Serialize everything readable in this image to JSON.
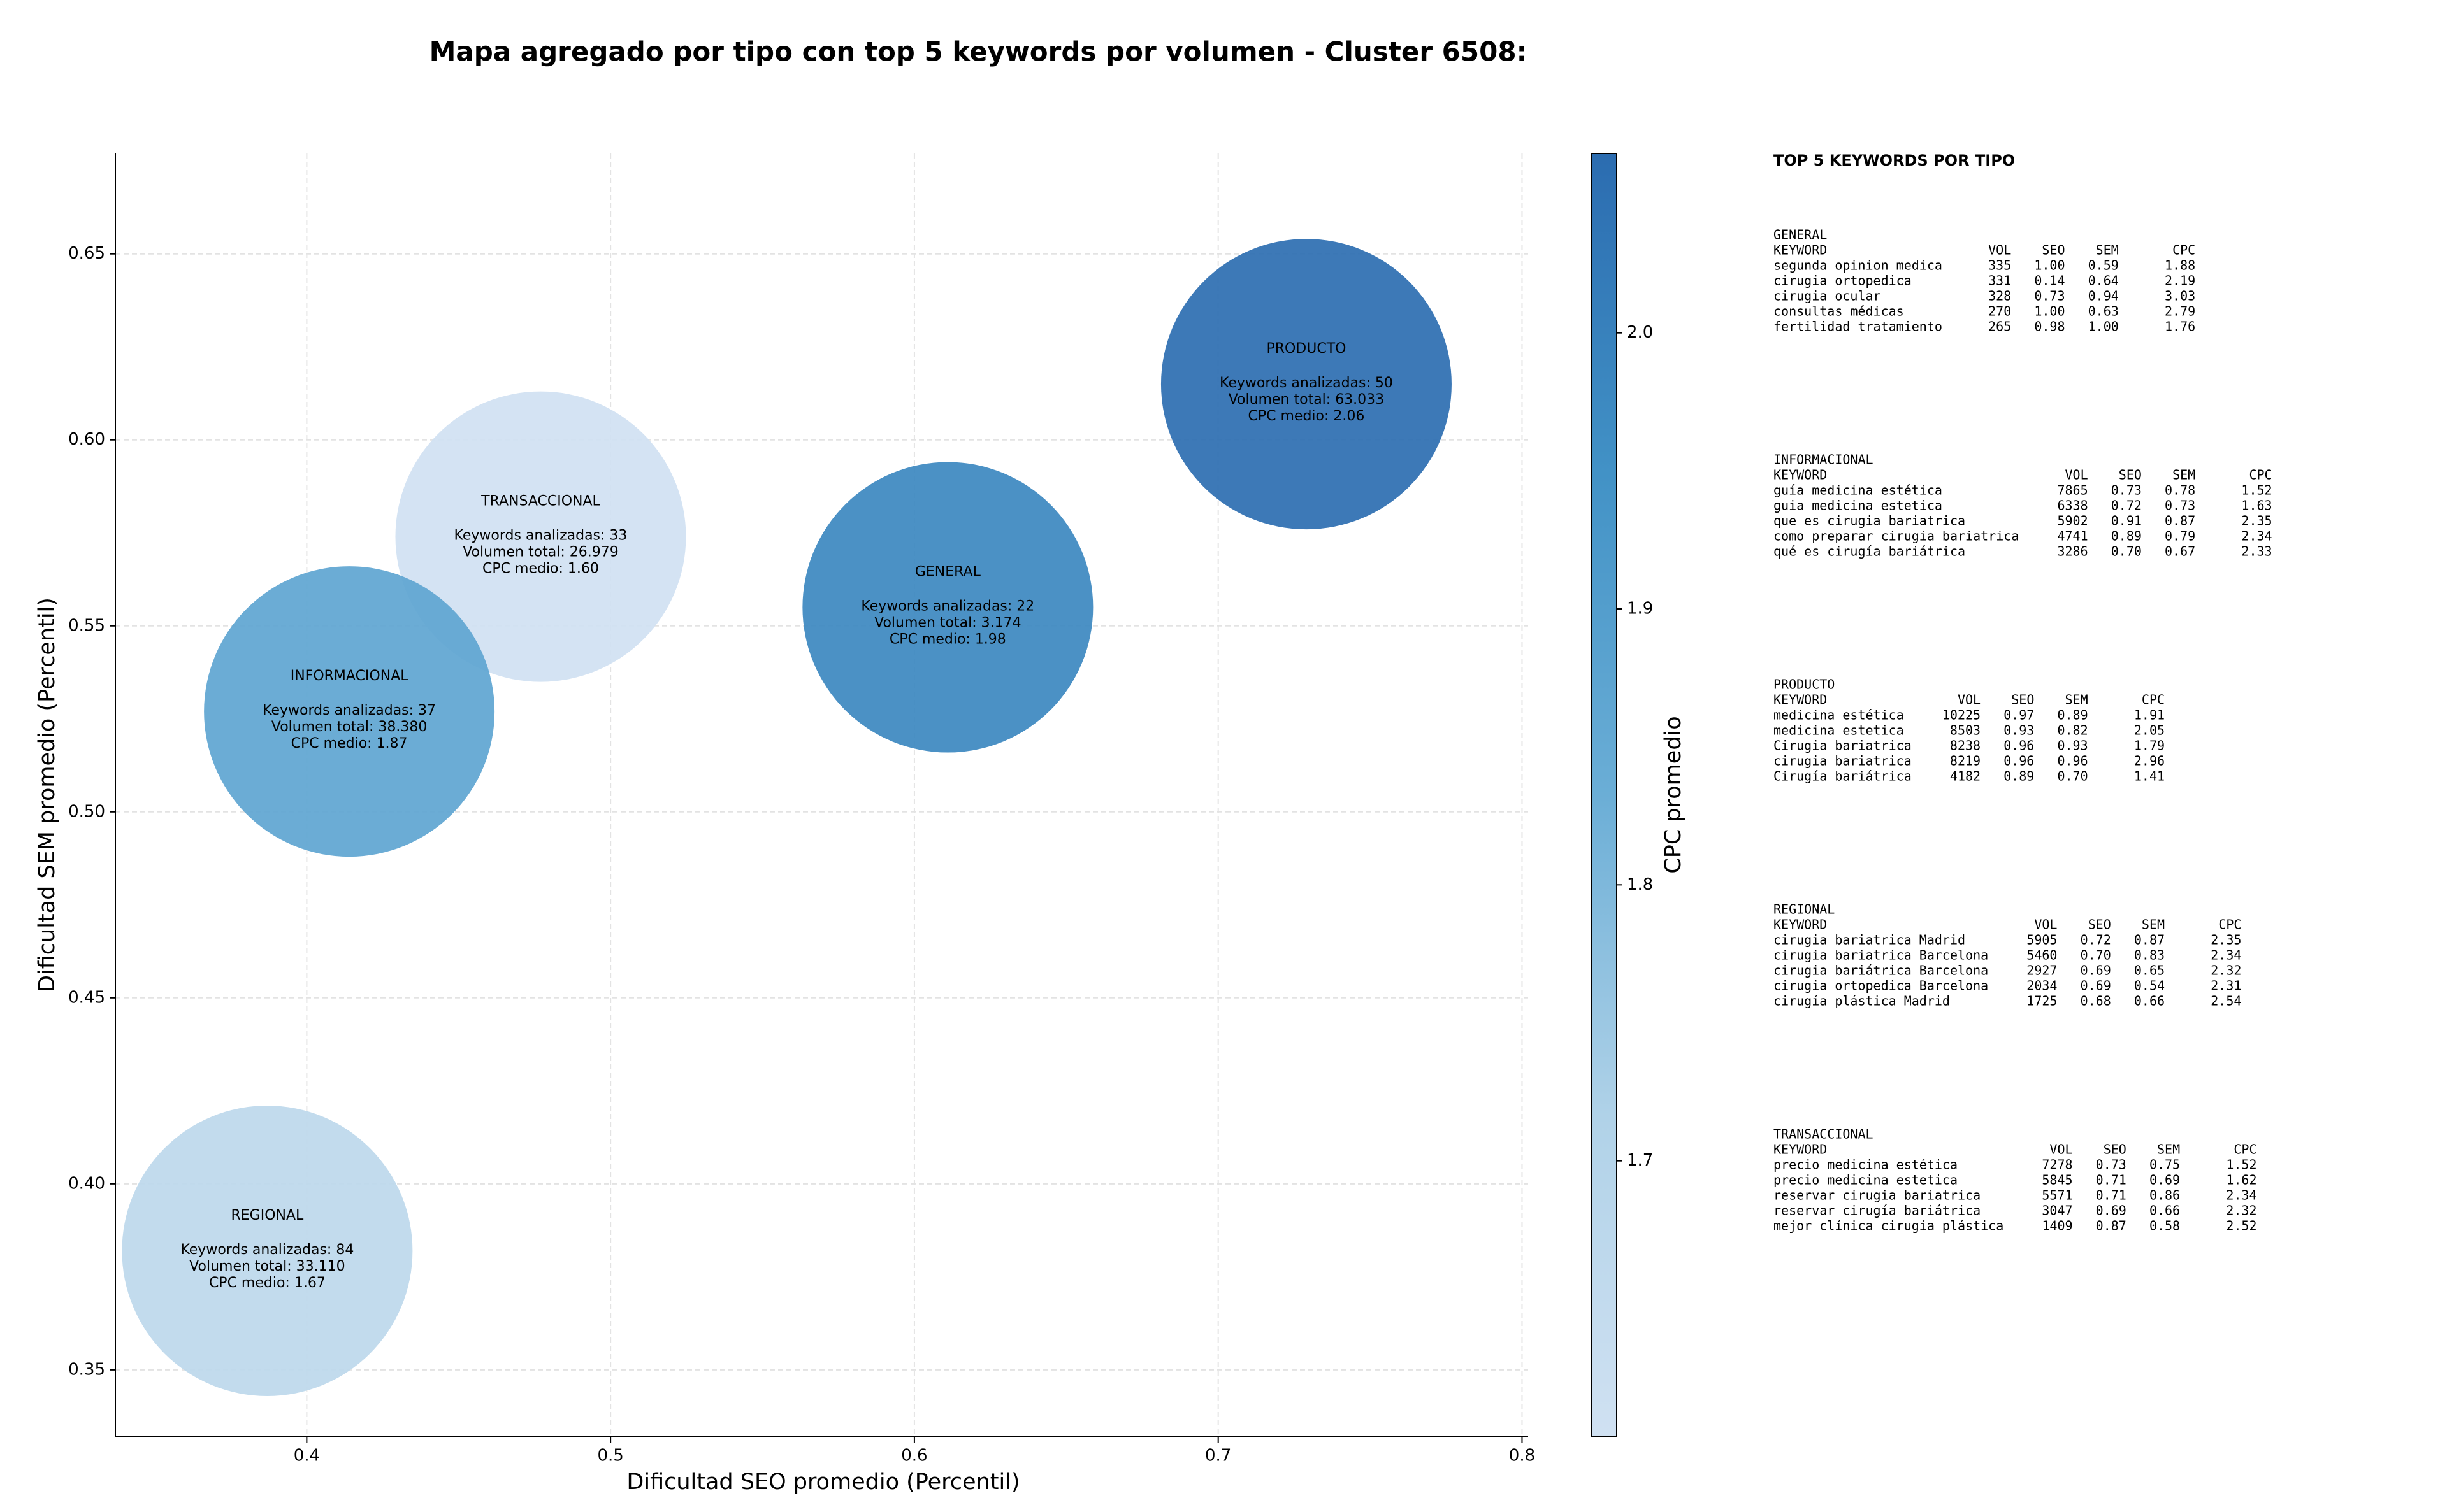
{
  "chart_data": {
    "type": "bubble",
    "title": "Mapa agregado por tipo con top 5 keywords por volumen - Cluster 6508:",
    "x_label": "Dificultad SEO promedio (Percentil)",
    "y_label": "Dificultad SEM promedio (Percentil)",
    "colorbar_label": "CPC promedio",
    "labels": [
      "PRODUCTO",
      "TRANSACCIONAL",
      "INFORMACIONAL",
      "GENERAL",
      "REGIONAL"
    ],
    "x": [
      0.729,
      0.477,
      0.414,
      0.611,
      0.387
    ],
    "y": [
      0.615,
      0.574,
      0.527,
      0.555,
      0.382
    ],
    "color_values": [
      2.06,
      1.6,
      1.87,
      1.98,
      1.67
    ],
    "annotations": [
      [
        "Keywords analizadas: 50",
        "Volumen total: 63.033",
        "CPC medio: 2.06"
      ],
      [
        "Keywords analizadas: 33",
        "Volumen total: 26.979",
        "CPC medio: 1.60"
      ],
      [
        "Keywords analizadas: 37",
        "Volumen total: 38.380",
        "CPC medio: 1.87"
      ],
      [
        "Keywords analizadas: 22",
        "Volumen total: 3.174",
        "CPC medio: 1.98"
      ],
      [
        "Keywords analizadas: 84",
        "Volumen total: 33.110",
        "CPC medio: 1.67"
      ]
    ],
    "xlim": [
      0.337,
      0.802
    ],
    "xticks": [
      0.4,
      0.5,
      0.6,
      0.7,
      0.8
    ],
    "ylim": [
      0.332,
      0.677
    ],
    "yticks": [
      0.35,
      {
        "value": 0.4,
        "label": "0.40"
      },
      0.45,
      {
        "value": 0.5,
        "label": "0.50"
      },
      0.55,
      {
        "value": 0.6,
        "label": "0.60"
      },
      0.65
    ],
    "clim": [
      1.6,
      2.065
    ],
    "cticks": [
      1.7,
      1.8,
      1.9,
      {
        "value": 2,
        "label": "2.0"
      }
    ],
    "colormap": [
      "#d0e1f2",
      "#b0d2e8",
      "#6baed6",
      "#4292c6",
      "#2b6cb0"
    ],
    "grid": true
  },
  "keyword_panel": {
    "title": "TOP 5 KEYWORDS POR TIPO",
    "columns": [
      "KEYWORD",
      "VOL",
      "SEO",
      "SEM",
      "CPC"
    ],
    "groups": [
      {
        "name": "GENERAL",
        "rows": [
          [
            "segunda opinion medica",
            "335",
            "1.00",
            "0.59",
            "1.88"
          ],
          [
            "cirugia ortopedica",
            "331",
            "0.14",
            "0.64",
            "2.19"
          ],
          [
            "cirugia ocular",
            "328",
            "0.73",
            "0.94",
            "3.03"
          ],
          [
            "consultas médicas",
            "270",
            "1.00",
            "0.63",
            "2.79"
          ],
          [
            "fertilidad tratamiento",
            "265",
            "0.98",
            "1.00",
            "1.76"
          ]
        ]
      },
      {
        "name": "INFORMACIONAL",
        "rows": [
          [
            "guía medicina estética",
            "7865",
            "0.73",
            "0.78",
            "1.52"
          ],
          [
            "guia medicina estetica",
            "6338",
            "0.72",
            "0.73",
            "1.63"
          ],
          [
            "que es cirugia bariatrica",
            "5902",
            "0.91",
            "0.87",
            "2.35"
          ],
          [
            "como preparar cirugia bariatrica",
            "4741",
            "0.89",
            "0.79",
            "2.34"
          ],
          [
            "qué es cirugía bariátrica",
            "3286",
            "0.70",
            "0.67",
            "2.33"
          ]
        ]
      },
      {
        "name": "PRODUCTO",
        "rows": [
          [
            "medicina estética",
            "10225",
            "0.97",
            "0.89",
            "1.91"
          ],
          [
            "medicina estetica",
            "8503",
            "0.93",
            "0.82",
            "2.05"
          ],
          [
            "Cirugia bariatrica",
            "8238",
            "0.96",
            "0.93",
            "1.79"
          ],
          [
            "cirugia bariatrica",
            "8219",
            "0.96",
            "0.96",
            "2.96"
          ],
          [
            "Cirugía bariátrica",
            "4182",
            "0.89",
            "0.70",
            "1.41"
          ]
        ]
      },
      {
        "name": "REGIONAL",
        "rows": [
          [
            "cirugia bariatrica Madrid",
            "5905",
            "0.72",
            "0.87",
            "2.35"
          ],
          [
            "cirugia bariatrica Barcelona",
            "5460",
            "0.70",
            "0.83",
            "2.34"
          ],
          [
            "cirugia bariátrica Barcelona",
            "2927",
            "0.69",
            "0.65",
            "2.32"
          ],
          [
            "cirugia ortopedica Barcelona",
            "2034",
            "0.69",
            "0.54",
            "2.31"
          ],
          [
            "cirugía plástica Madrid",
            "1725",
            "0.68",
            "0.66",
            "2.54"
          ]
        ]
      },
      {
        "name": "TRANSACCIONAL",
        "rows": [
          [
            "precio medicina estética",
            "7278",
            "0.73",
            "0.75",
            "1.52"
          ],
          [
            "precio medicina estetica",
            "5845",
            "0.71",
            "0.69",
            "1.62"
          ],
          [
            "reservar cirugia bariatrica",
            "5571",
            "0.71",
            "0.86",
            "2.34"
          ],
          [
            "reservar cirugía bariátrica",
            "3047",
            "0.69",
            "0.66",
            "2.32"
          ],
          [
            "mejor clínica cirugía plástica",
            "1409",
            "0.87",
            "0.58",
            "2.52"
          ]
        ]
      }
    ]
  }
}
